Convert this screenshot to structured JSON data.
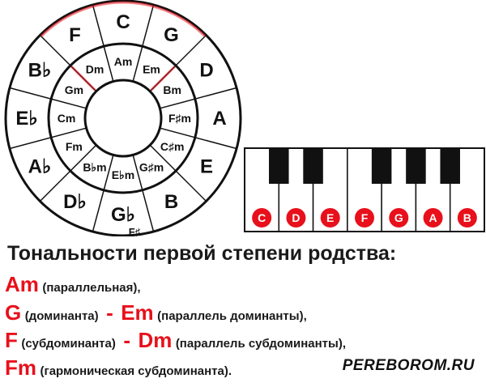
{
  "circle_of_fifths": {
    "major_keys": [
      {
        "name": "C",
        "sub": "",
        "highlight": true
      },
      {
        "name": "G",
        "sub": "",
        "highlight": true
      },
      {
        "name": "D",
        "sub": "",
        "highlight": false
      },
      {
        "name": "A",
        "sub": "",
        "highlight": false
      },
      {
        "name": "E",
        "sub": "",
        "highlight": false
      },
      {
        "name": "B",
        "sub": "",
        "highlight": false
      },
      {
        "name": "G♭",
        "sub": "F♯",
        "highlight": false
      },
      {
        "name": "D♭",
        "sub": "",
        "highlight": false
      },
      {
        "name": "A♭",
        "sub": "",
        "highlight": false
      },
      {
        "name": "E♭",
        "sub": "",
        "highlight": false
      },
      {
        "name": "B♭",
        "sub": "",
        "highlight": false
      },
      {
        "name": "F",
        "sub": "",
        "highlight": true
      }
    ],
    "minor_keys": [
      "Am",
      "Em",
      "Bm",
      "F♯m",
      "C♯m",
      "G♯m",
      "E♭m",
      "B♭m",
      "Fm",
      "Cm",
      "Gm",
      "Dm"
    ],
    "highlight_color": "#e8101b"
  },
  "piano": {
    "white_keys": [
      "C",
      "D",
      "E",
      "F",
      "G",
      "A",
      "B"
    ],
    "black_keys_after_white": [
      0,
      1,
      3,
      4,
      5
    ],
    "marker_color": "#e8101b"
  },
  "text": {
    "heading": "Тональности первой степени родства:",
    "line1": {
      "key": "Am",
      "desc": "(параллельная),"
    },
    "line2": {
      "key1": "G",
      "desc1": "(доминанта)",
      "dash": "-",
      "key2": "Em",
      "desc2": "(параллель доминанты),"
    },
    "line3": {
      "key1": "F",
      "desc1": "(субдоминанта)",
      "dash": "-",
      "key2": "Dm",
      "desc2": "(параллель субдоминанты),"
    },
    "line4": {
      "key": "Fm",
      "desc": "(гармоническая субдоминанта)."
    },
    "brand": "PEREBOROM.RU"
  }
}
